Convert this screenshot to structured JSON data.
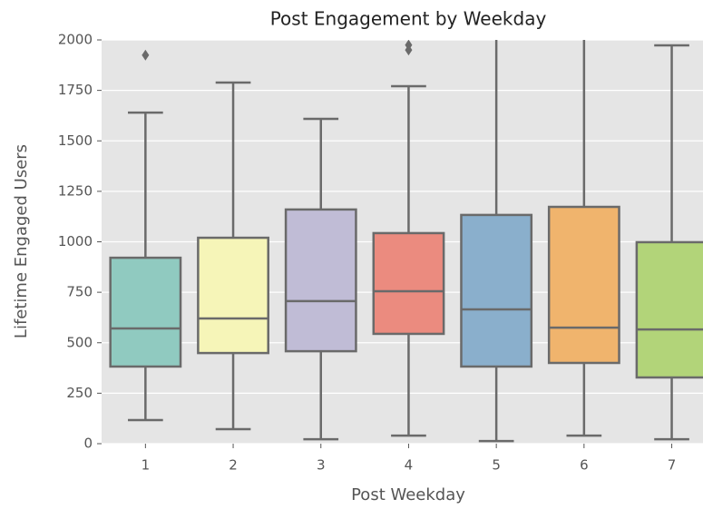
{
  "chart_data": {
    "type": "box",
    "title": "Post Engagement by Weekday",
    "x_label": "Post Weekday",
    "y_label": "Lifetime Engaged Users",
    "categories": [
      "1",
      "2",
      "3",
      "4",
      "5",
      "6",
      "7"
    ],
    "boxes": [
      {
        "whislo": 117,
        "q1": 382,
        "med": 571,
        "q3": 921,
        "whishi": 1640,
        "fliers": [
          1925
        ]
      },
      {
        "whislo": 72,
        "q1": 449,
        "med": 620,
        "q3": 1020,
        "whishi": 1789,
        "fliers": []
      },
      {
        "whislo": 22,
        "q1": 458,
        "med": 706,
        "q3": 1160,
        "whishi": 1609,
        "fliers": []
      },
      {
        "whislo": 40,
        "q1": 544,
        "med": 755,
        "q3": 1043,
        "whishi": 1771,
        "fliers": [
          1975,
          1950
        ]
      },
      {
        "whislo": 13,
        "q1": 382,
        "med": 665,
        "q3": 1133,
        "whishi": 2050,
        "fliers": []
      },
      {
        "whislo": 40,
        "q1": 400,
        "med": 575,
        "q3": 1173,
        "whishi": 2050,
        "fliers": []
      },
      {
        "whislo": 22,
        "q1": 328,
        "med": 566,
        "q3": 998,
        "whishi": 1973,
        "fliers": []
      }
    ],
    "colors": [
      "#90cac0",
      "#f6f5b8",
      "#c0bcd6",
      "#eb8b7f",
      "#8aafcc",
      "#f0b46d",
      "#b2d479"
    ],
    "ylim": [
      0,
      2000
    ],
    "yticks": [
      0,
      250,
      500,
      750,
      1000,
      1250,
      1500,
      1750,
      2000
    ],
    "grid": true
  }
}
